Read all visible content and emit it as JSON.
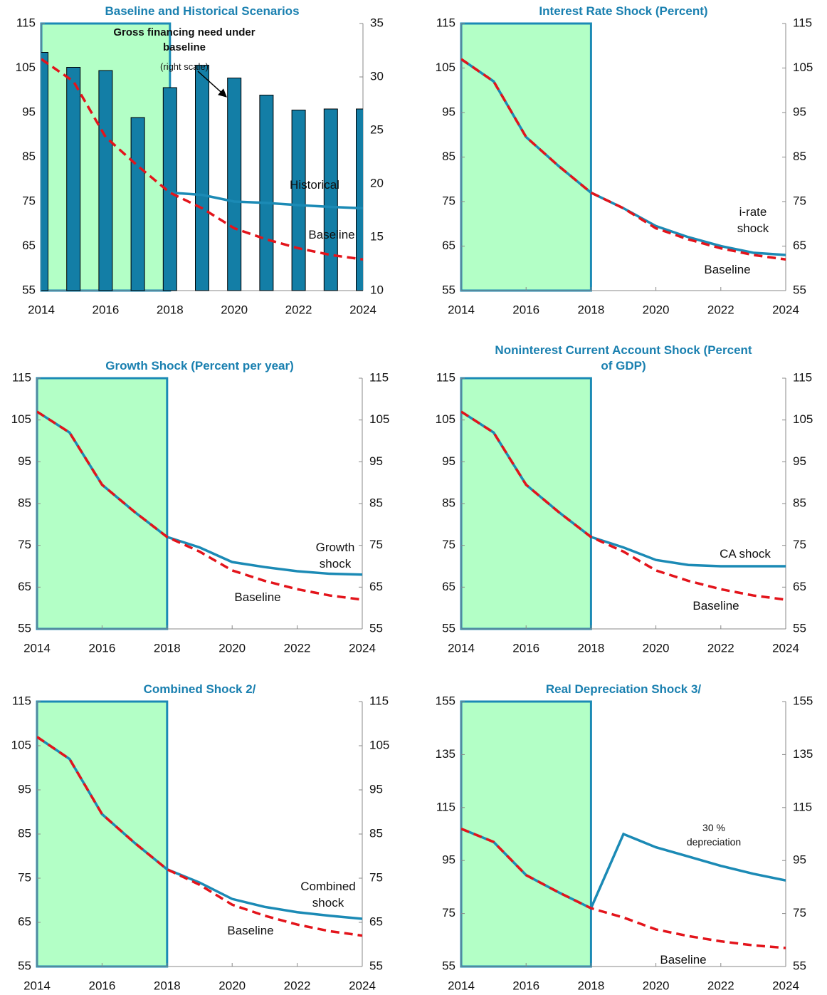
{
  "chart_data": [
    {
      "type": "combo",
      "title": "Baseline and Historical Scenarios",
      "x": [
        2014,
        2015,
        2016,
        2017,
        2018,
        2019,
        2020,
        2021,
        2022,
        2023,
        2024
      ],
      "xlim": [
        2014,
        2024
      ],
      "xticks": [
        2014,
        2016,
        2018,
        2020,
        2022,
        2024
      ],
      "ylim": [
        55,
        115
      ],
      "yticks": [
        55,
        65,
        75,
        85,
        95,
        105,
        115
      ],
      "y2lim": [
        10,
        35
      ],
      "y2ticks": [
        10,
        15,
        20,
        25,
        30,
        35
      ],
      "shade": [
        2014,
        2018
      ],
      "note": "(right scale)",
      "series": [
        {
          "name": "Gross financing need under baseline",
          "mark": "bar",
          "axis": "y2",
          "color": "#137ea6",
          "values": [
            32.3,
            30.9,
            30.6,
            26.2,
            29,
            31.1,
            29.9,
            28.3,
            26.9,
            27,
            27
          ]
        },
        {
          "name": "Historical",
          "mark": "line",
          "color": "#1b8ab5",
          "values": [
            null,
            null,
            null,
            null,
            77,
            76.5,
            75,
            74.7,
            74.2,
            73.8,
            73.5
          ]
        },
        {
          "name": "Baseline",
          "mark": "line",
          "style": "dashed",
          "color": "#e3141b",
          "values": [
            107,
            102,
            89.5,
            83,
            77,
            73.5,
            69,
            66.5,
            64.5,
            63,
            62
          ]
        }
      ]
    },
    {
      "type": "line",
      "title": "Interest Rate Shock (Percent)",
      "x": [
        2014,
        2015,
        2016,
        2017,
        2018,
        2019,
        2020,
        2021,
        2022,
        2023,
        2024
      ],
      "xlim": [
        2014,
        2024
      ],
      "xticks": [
        2014,
        2016,
        2018,
        2020,
        2022,
        2024
      ],
      "ylim": [
        55,
        115
      ],
      "yticks": [
        55,
        65,
        75,
        85,
        95,
        105,
        115
      ],
      "y2lim": [
        55,
        115
      ],
      "y2ticks": [
        55,
        65,
        75,
        85,
        95,
        105,
        115
      ],
      "shade": [
        2014,
        2018
      ],
      "series": [
        {
          "name": "i-rate shock",
          "mark": "line",
          "color": "#1b8ab5",
          "values": [
            107,
            102,
            89.5,
            83,
            77,
            73.5,
            69.5,
            67,
            65,
            63.5,
            63
          ]
        },
        {
          "name": "Baseline",
          "mark": "line",
          "style": "dashed",
          "color": "#e3141b",
          "values": [
            107,
            102,
            89.5,
            83,
            77,
            73.5,
            69,
            66.5,
            64.5,
            63,
            62
          ]
        }
      ]
    },
    {
      "type": "line",
      "title": "Growth Shock (Percent per year)",
      "x": [
        2014,
        2015,
        2016,
        2017,
        2018,
        2019,
        2020,
        2021,
        2022,
        2023,
        2024
      ],
      "xlim": [
        2014,
        2024
      ],
      "xticks": [
        2014,
        2016,
        2018,
        2020,
        2022,
        2024
      ],
      "ylim": [
        55,
        115
      ],
      "yticks": [
        55,
        65,
        75,
        85,
        95,
        105,
        115
      ],
      "y2lim": [
        55,
        115
      ],
      "y2ticks": [
        55,
        65,
        75,
        85,
        95,
        105,
        115
      ],
      "shade": [
        2014,
        2018
      ],
      "series": [
        {
          "name": "Growth shock",
          "mark": "line",
          "color": "#1b8ab5",
          "values": [
            107,
            102,
            89.5,
            83,
            77,
            74.5,
            71,
            69.8,
            68.8,
            68.2,
            68
          ]
        },
        {
          "name": "Baseline",
          "mark": "line",
          "style": "dashed",
          "color": "#e3141b",
          "values": [
            107,
            102,
            89.5,
            83,
            77,
            73.5,
            69,
            66.5,
            64.5,
            63,
            62
          ]
        }
      ]
    },
    {
      "type": "line",
      "title": "Noninterest Current Account Shock (Percent of GDP)",
      "x": [
        2014,
        2015,
        2016,
        2017,
        2018,
        2019,
        2020,
        2021,
        2022,
        2023,
        2024
      ],
      "xlim": [
        2014,
        2024
      ],
      "xticks": [
        2014,
        2016,
        2018,
        2020,
        2022,
        2024
      ],
      "ylim": [
        55,
        115
      ],
      "yticks": [
        55,
        65,
        75,
        85,
        95,
        105,
        115
      ],
      "y2lim": [
        55,
        115
      ],
      "y2ticks": [
        55,
        65,
        75,
        85,
        95,
        105,
        115
      ],
      "shade": [
        2014,
        2018
      ],
      "series": [
        {
          "name": "CA shock",
          "mark": "line",
          "color": "#1b8ab5",
          "values": [
            107,
            102,
            89.5,
            83,
            77,
            74.5,
            71.5,
            70.3,
            70,
            70,
            70
          ]
        },
        {
          "name": "Baseline",
          "mark": "line",
          "style": "dashed",
          "color": "#e3141b",
          "values": [
            107,
            102,
            89.5,
            83,
            77,
            73.5,
            69,
            66.5,
            64.5,
            63,
            62
          ]
        }
      ]
    },
    {
      "type": "line",
      "title": "Combined Shock  2/",
      "x": [
        2014,
        2015,
        2016,
        2017,
        2018,
        2019,
        2020,
        2021,
        2022,
        2023,
        2024
      ],
      "xlim": [
        2014,
        2024
      ],
      "xticks": [
        2014,
        2016,
        2018,
        2020,
        2022,
        2024
      ],
      "ylim": [
        55,
        115
      ],
      "yticks": [
        55,
        65,
        75,
        85,
        95,
        105,
        115
      ],
      "y2lim": [
        55,
        115
      ],
      "y2ticks": [
        55,
        65,
        75,
        85,
        95,
        105,
        115
      ],
      "shade": [
        2014,
        2018
      ],
      "series": [
        {
          "name": "Combined shock",
          "mark": "line",
          "color": "#1b8ab5",
          "values": [
            107,
            102,
            89.5,
            83,
            77,
            74,
            70.3,
            68.5,
            67.3,
            66.5,
            65.8
          ]
        },
        {
          "name": "Baseline",
          "mark": "line",
          "style": "dashed",
          "color": "#e3141b",
          "values": [
            107,
            102,
            89.5,
            83,
            77,
            73.5,
            69,
            66.5,
            64.5,
            63,
            62
          ]
        }
      ]
    },
    {
      "type": "line",
      "title": "Real Depreciation Shock  3/",
      "x": [
        2014,
        2015,
        2016,
        2017,
        2018,
        2019,
        2020,
        2021,
        2022,
        2023,
        2024
      ],
      "xlim": [
        2014,
        2024
      ],
      "xticks": [
        2014,
        2016,
        2018,
        2020,
        2022,
        2024
      ],
      "ylim": [
        55,
        155
      ],
      "yticks": [
        55,
        75,
        95,
        115,
        135,
        155
      ],
      "y2lim": [
        55,
        155
      ],
      "y2ticks": [
        55,
        75,
        95,
        115,
        135,
        155
      ],
      "shade": [
        2014,
        2018
      ],
      "series": [
        {
          "name": "30 % depreciation",
          "mark": "line",
          "color": "#1b8ab5",
          "values": [
            107,
            102,
            89.5,
            83,
            77,
            105,
            100,
            96.5,
            93,
            90,
            87.5
          ]
        },
        {
          "name": "Baseline",
          "mark": "line",
          "style": "dashed",
          "color": "#e3141b",
          "values": [
            107,
            102,
            89.5,
            83,
            77,
            73.5,
            69,
            66.5,
            64.5,
            63,
            62
          ]
        }
      ]
    }
  ]
}
